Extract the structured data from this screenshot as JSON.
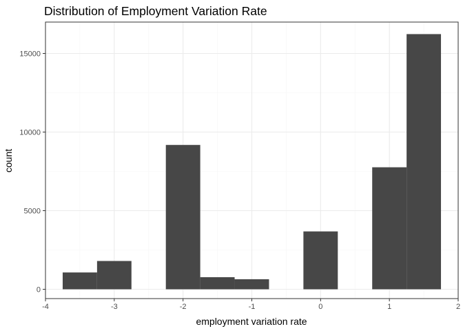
{
  "chart_data": {
    "type": "bar",
    "title": "Distribution of Employment Variation Rate",
    "xlabel": "employment variation rate",
    "ylabel": "count",
    "xlim": [
      -4,
      2
    ],
    "ylim": [
      0,
      17000
    ],
    "xticks": [
      "-4",
      "-3",
      "-2",
      "-1",
      "0",
      "1",
      "2"
    ],
    "yticks": [
      "0",
      "5000",
      "10000",
      "15000"
    ],
    "grid": true,
    "bins": [
      {
        "x0": -3.75,
        "x1": -3.25,
        "count": 1070
      },
      {
        "x0": -3.25,
        "x1": -2.75,
        "count": 1800
      },
      {
        "x0": -2.25,
        "x1": -1.75,
        "count": 9180
      },
      {
        "x0": -1.75,
        "x1": -1.25,
        "count": 770
      },
      {
        "x0": -1.25,
        "x1": -0.75,
        "count": 640
      },
      {
        "x0": -0.25,
        "x1": 0.25,
        "count": 3680
      },
      {
        "x0": 0.75,
        "x1": 1.25,
        "count": 7760
      },
      {
        "x0": 1.25,
        "x1": 1.75,
        "count": 16230
      }
    ],
    "colors": {
      "bar": "#474747",
      "panel_border": "#333333",
      "grid_major": "#ebebeb",
      "grid_minor": "#f5f5f5",
      "tick_label": "#4d4d4d"
    }
  }
}
